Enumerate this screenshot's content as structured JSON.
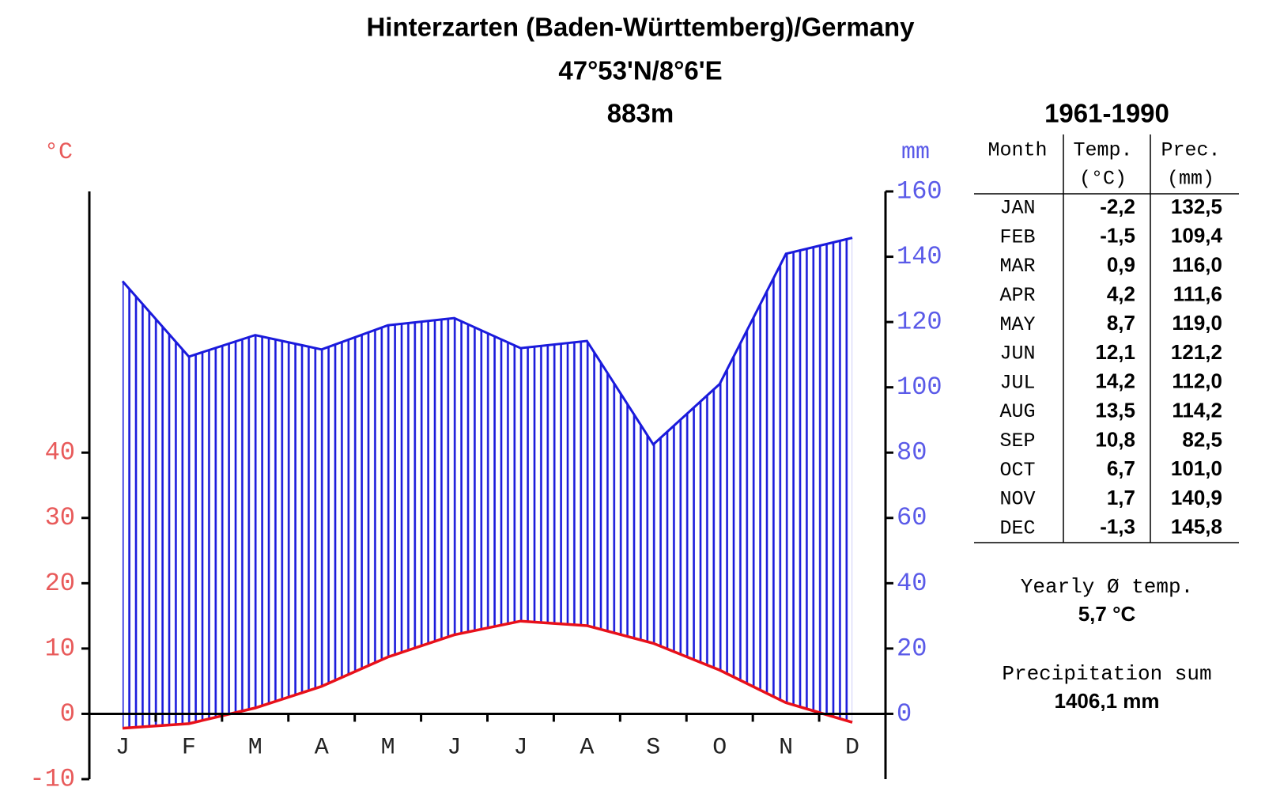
{
  "chart_data": {
    "type": "climate",
    "title": "Hinterzarten (Baden-Württemberg)/Germany",
    "subtitle": "47°53'N/8°6'E",
    "elevation": "883m",
    "y_label": "°C",
    "y2_label": "mm",
    "categories": [
      "J",
      "F",
      "M",
      "A",
      "M",
      "J",
      "J",
      "A",
      "S",
      "O",
      "N",
      "D"
    ],
    "ylim": [
      -10,
      80
    ],
    "yticks": [
      -10,
      0,
      10,
      20,
      30,
      40
    ],
    "y2lim": [
      -20,
      160
    ],
    "y2ticks": [
      0,
      20,
      40,
      60,
      80,
      100,
      120,
      140,
      160
    ],
    "series": [
      {
        "name": "Temp.",
        "color": "#e8101a",
        "values": [
          -2.2,
          -1.5,
          0.9,
          4.2,
          8.7,
          12.1,
          14.2,
          13.5,
          10.8,
          6.7,
          1.7,
          -1.3
        ],
        "value_labels": [
          "-2,2",
          "-1,5",
          "0,9",
          "4,2",
          "8,7",
          "12,1",
          "14,2",
          "13,5",
          "10,8",
          "6,7",
          "1,7",
          "-1,3"
        ]
      },
      {
        "name": "Prec.",
        "color": "#1a1adc",
        "axis": "y2",
        "values": [
          132.5,
          109.4,
          116.0,
          111.6,
          119.0,
          121.2,
          112.0,
          114.2,
          82.5,
          101.0,
          140.9,
          145.8
        ],
        "value_labels": [
          "132,5",
          "109,4",
          "116,0",
          "111,6",
          "119,0",
          "121,2",
          "112,0",
          "114,2",
          "82,5",
          "101,0",
          "140,9",
          "145,8"
        ]
      }
    ],
    "table": {
      "title": "1961-1990",
      "month_header": "Month",
      "units": [
        "(°C)",
        "(mm)"
      ],
      "months": [
        "JAN",
        "FEB",
        "MAR",
        "APR",
        "MAY",
        "JUN",
        "JUL",
        "AUG",
        "SEP",
        "OCT",
        "NOV",
        "DEC"
      ]
    },
    "summary": {
      "temp_label": "Yearly Ø temp.",
      "temp_value": "5,7 °C",
      "prec_label": "Precipitation sum",
      "prec_value": "1406,1 mm"
    }
  }
}
